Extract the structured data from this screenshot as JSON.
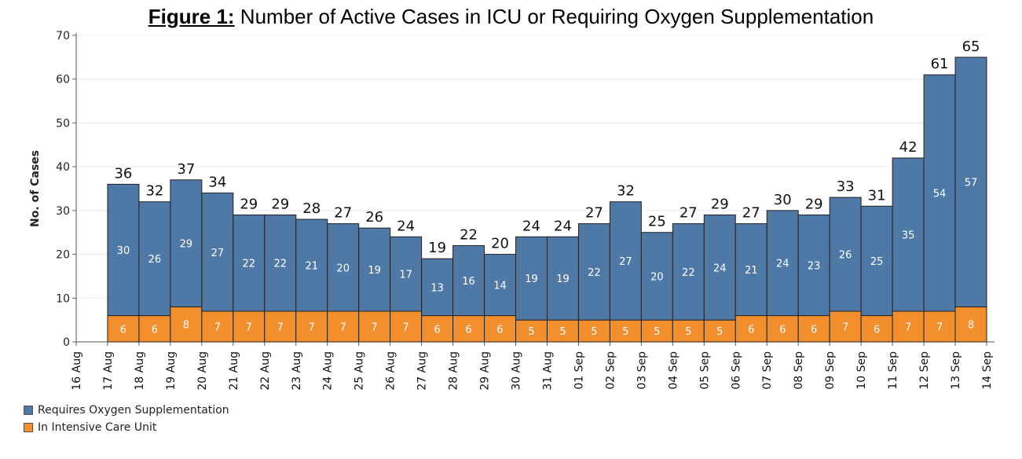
{
  "title_lead": "Figure 1:",
  "title_rest": " Number of Active Cases in ICU or Requiring Oxygen Supplementation",
  "colors": {
    "oxygen": "#4e79a7",
    "icu": "#f28e2b"
  },
  "chart_data": {
    "type": "bar",
    "stacked": true,
    "title": "Figure 1: Number of Active Cases in ICU or Requiring Oxygen Supplementation",
    "xlabel": "",
    "ylabel": "No. of Cases",
    "ylim": [
      0,
      70
    ],
    "yticks": [
      0,
      10,
      20,
      30,
      40,
      50,
      60,
      70
    ],
    "grid": true,
    "legend_position": "bottom-left",
    "categories": [
      "17 Aug",
      "18 Aug",
      "19 Aug",
      "20 Aug",
      "21 Aug",
      "22 Aug",
      "23 Aug",
      "24 Aug",
      "25 Aug",
      "26 Aug",
      "27 Aug",
      "28 Aug",
      "29 Aug",
      "30 Aug",
      "31 Aug",
      "01 Sep",
      "02 Sep",
      "03 Sep",
      "04 Sep",
      "05 Sep",
      "06 Sep",
      "07 Sep",
      "08 Sep",
      "09 Sep",
      "10 Sep",
      "11 Sep",
      "12 Sep",
      "13 Sep"
    ],
    "x_tick_labels": [
      "16 Aug",
      "17 Aug",
      "18 Aug",
      "19 Aug",
      "20 Aug",
      "21 Aug",
      "22 Aug",
      "23 Aug",
      "24 Aug",
      "25 Aug",
      "26 Aug",
      "27 Aug",
      "28 Aug",
      "29 Aug",
      "30 Aug",
      "31 Aug",
      "01 Sep",
      "02 Sep",
      "03 Sep",
      "04 Sep",
      "05 Sep",
      "06 Sep",
      "07 Sep",
      "08 Sep",
      "09 Sep",
      "10 Sep",
      "11 Sep",
      "12 Sep",
      "13 Sep",
      "14 Sep"
    ],
    "series": [
      {
        "name": "In Intensive Care Unit",
        "values": [
          6,
          6,
          8,
          7,
          7,
          7,
          7,
          7,
          7,
          7,
          6,
          6,
          6,
          5,
          5,
          5,
          5,
          5,
          5,
          5,
          6,
          6,
          6,
          7,
          6,
          7,
          7,
          8
        ]
      },
      {
        "name": "Requires Oxygen Supplementation",
        "values": [
          30,
          26,
          29,
          27,
          22,
          22,
          21,
          20,
          19,
          17,
          13,
          16,
          14,
          19,
          19,
          22,
          27,
          20,
          22,
          24,
          21,
          24,
          23,
          26,
          25,
          35,
          54,
          57
        ]
      }
    ],
    "totals": [
      36,
      32,
      37,
      34,
      29,
      29,
      28,
      27,
      26,
      24,
      19,
      22,
      20,
      24,
      24,
      27,
      32,
      25,
      27,
      29,
      27,
      30,
      29,
      33,
      31,
      42,
      61,
      65
    ]
  },
  "legend": [
    {
      "label": "Requires Oxygen Supplementation",
      "color": "#4e79a7"
    },
    {
      "label": "In Intensive Care Unit",
      "color": "#f28e2b"
    }
  ]
}
